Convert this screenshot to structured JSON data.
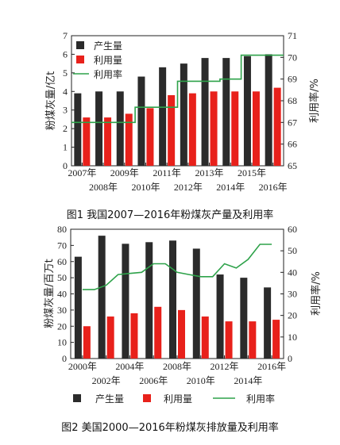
{
  "chart_data": [
    {
      "type": "bar",
      "caption": "图1 我国2007—2016年粉煤灰产量及利用率",
      "ylabel": "粉煤灰量/亿t",
      "y2label": "利用率/%",
      "categories": [
        "2007年",
        "2008年",
        "2009年",
        "2010年",
        "2011年",
        "2012年",
        "2013年",
        "2014年",
        "2015年",
        "2016年"
      ],
      "ylim": [
        0,
        7
      ],
      "yticks": [
        "0",
        "1",
        "2",
        "3",
        "4",
        "5",
        "6",
        "7"
      ],
      "y2lim": [
        65,
        71
      ],
      "y2ticks": [
        "65",
        "66",
        "67",
        "68",
        "69",
        "70",
        "71"
      ],
      "legend_position": "top-left",
      "series": [
        {
          "name": "产生量",
          "kind": "bar",
          "axis": "left",
          "color": "#2b2b2b",
          "values": [
            3.9,
            4.0,
            4.0,
            4.8,
            5.3,
            5.5,
            5.8,
            5.8,
            5.9,
            6.0
          ]
        },
        {
          "name": "利用量",
          "kind": "bar",
          "axis": "left",
          "color": "#e8211b",
          "values": [
            2.6,
            2.6,
            2.8,
            3.1,
            3.8,
            3.9,
            4.0,
            4.0,
            4.0,
            4.2
          ]
        },
        {
          "name": "利用率",
          "kind": "line",
          "axis": "right",
          "color": "#2ea24a",
          "values": [
            67.0,
            67.0,
            67.0,
            67.7,
            67.7,
            68.9,
            68.9,
            69.0,
            70.1,
            70.1
          ]
        }
      ]
    },
    {
      "type": "bar",
      "caption": "图2 美国2000—2016年粉煤灰排放量及利用率",
      "ylabel": "粉煤灰量/百万t",
      "y2label": "利用率/%",
      "categories": [
        "2000年",
        "2002年",
        "2004年",
        "2006年",
        "2008年",
        "2010年",
        "2012年",
        "2014年",
        "2016年"
      ],
      "ylim": [
        0,
        80
      ],
      "yticks": [
        "0",
        "10",
        "20",
        "30",
        "40",
        "50",
        "60",
        "70",
        "80"
      ],
      "y2lim": [
        0,
        60
      ],
      "y2ticks": [
        "0",
        "10",
        "20",
        "30",
        "40",
        "50",
        "60"
      ],
      "legend_position": "bottom",
      "series": [
        {
          "name": "产生量",
          "kind": "bar",
          "axis": "left",
          "color": "#2b2b2b",
          "values": [
            63,
            76,
            71,
            72,
            73,
            68,
            52,
            50,
            44
          ]
        },
        {
          "name": "利用量",
          "kind": "bar",
          "axis": "left",
          "color": "#e8211b",
          "values": [
            20,
            26,
            28,
            32,
            30,
            26,
            23,
            23,
            24
          ]
        },
        {
          "name": "利用率",
          "kind": "line",
          "axis": "right",
          "color": "#2ea24a",
          "x": [
            0,
            1,
            2,
            3,
            4,
            5,
            6,
            7,
            8,
            9,
            10,
            11,
            12,
            13,
            14,
            15,
            16
          ],
          "values": [
            32,
            32,
            34,
            39,
            39.5,
            40,
            44,
            44,
            40,
            39,
            38,
            38,
            44,
            42,
            46,
            53,
            53
          ]
        }
      ]
    }
  ]
}
